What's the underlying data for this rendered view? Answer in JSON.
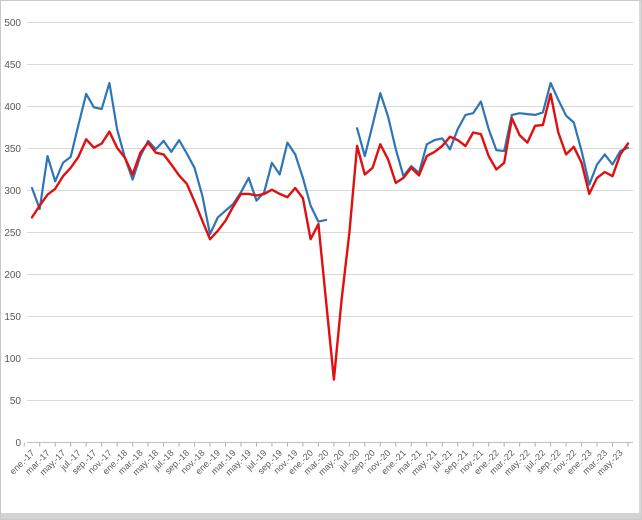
{
  "chart_data": {
    "type": "line",
    "title": "",
    "xlabel": "",
    "ylabel": "",
    "ylim": [
      0,
      500
    ],
    "yticks": [
      0,
      50,
      100,
      150,
      200,
      250,
      300,
      350,
      400,
      450,
      500
    ],
    "grid": "horizontal",
    "legend": "none",
    "x_label_every": 2,
    "categories": [
      "ene.-17",
      "feb.-17",
      "mar.-17",
      "abr.-17",
      "may.-17",
      "jun.-17",
      "jul.-17",
      "ago.-17",
      "sep.-17",
      "oct.-17",
      "nov.-17",
      "dic.-17",
      "ene.-18",
      "feb.-18",
      "mar.-18",
      "abr.-18",
      "may.-18",
      "jun.-18",
      "jul.-18",
      "ago.-18",
      "sep.-18",
      "oct.-18",
      "nov.-18",
      "dic.-18",
      "ene.-19",
      "feb.-19",
      "mar.-19",
      "abr.-19",
      "may.-19",
      "jun.-19",
      "jul.-19",
      "ago.-19",
      "sep.-19",
      "oct.-19",
      "nov.-19",
      "dic.-19",
      "ene.-20",
      "feb.-20",
      "mar.-20",
      "abr.-20",
      "may.-20",
      "jun.-20",
      "jul.-20",
      "ago.-20",
      "sep.-20",
      "oct.-20",
      "nov.-20",
      "dic.-20",
      "ene.-21",
      "feb.-21",
      "mar.-21",
      "abr.-21",
      "may.-21",
      "jun.-21",
      "jul.-21",
      "ago.-21",
      "sep.-21",
      "oct.-21",
      "nov.-21",
      "dic.-21",
      "ene.-22",
      "feb.-22",
      "mar.-22",
      "abr.-22",
      "may.-22",
      "jun.-22",
      "jul.-22",
      "ago.-22",
      "sep.-22",
      "oct.-22",
      "nov.-22",
      "dic.-22",
      "ene.-23",
      "feb.-23",
      "mar.-23",
      "abr.-23",
      "may.-23",
      "jun.-23"
    ],
    "series": [
      {
        "name": "series-blue",
        "color": "#2e75b6",
        "stroke_width": 2.2,
        "values": [
          303,
          278,
          341,
          311,
          333,
          340,
          378,
          415,
          399,
          397,
          428,
          373,
          339,
          313,
          341,
          359,
          349,
          359,
          346,
          360,
          344,
          327,
          294,
          248,
          268,
          276,
          284,
          298,
          315,
          288,
          298,
          333,
          319,
          357,
          343,
          315,
          282,
          263,
          265,
          null,
          null,
          null,
          374,
          341,
          378,
          416,
          388,
          349,
          317,
          329,
          321,
          355,
          360,
          362,
          349,
          373,
          390,
          392,
          406,
          373,
          348,
          347,
          390,
          392,
          391,
          390,
          393,
          428,
          408,
          389,
          381,
          347,
          307,
          331,
          343,
          331,
          347,
          351
        ]
      },
      {
        "name": "series-red",
        "color": "#e01010",
        "stroke_width": 2.4,
        "values": [
          268,
          282,
          295,
          302,
          317,
          327,
          340,
          361,
          351,
          356,
          370,
          351,
          339,
          319,
          345,
          357,
          345,
          343,
          331,
          318,
          308,
          287,
          264,
          242,
          252,
          264,
          281,
          296,
          296,
          294,
          296,
          301,
          296,
          292,
          303,
          291,
          242,
          260,
          168,
          75,
          170,
          250,
          353,
          319,
          327,
          355,
          337,
          309,
          315,
          327,
          318,
          341,
          346,
          353,
          364,
          360,
          353,
          369,
          367,
          341,
          325,
          333,
          386,
          366,
          357,
          377,
          378,
          415,
          369,
          343,
          352,
          333,
          296,
          315,
          322,
          317,
          343,
          356
        ]
      }
    ],
    "axis_text_color": "#595959",
    "gridline_color": "#d9d9d9",
    "axis_line_color": "#c0c0c0",
    "tick_color": "#adadad"
  }
}
